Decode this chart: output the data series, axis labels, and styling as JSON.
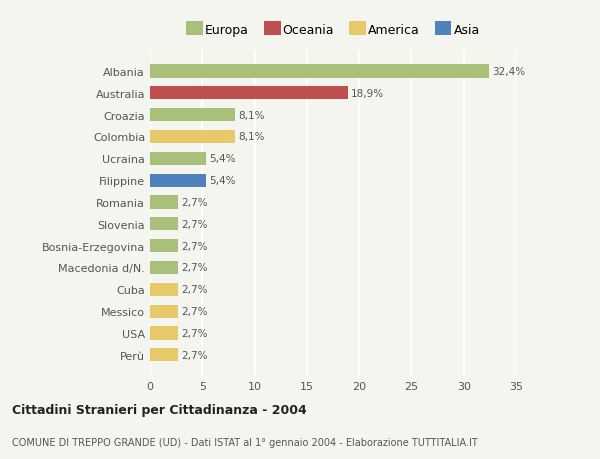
{
  "categories": [
    "Albania",
    "Australia",
    "Croazia",
    "Colombia",
    "Ucraina",
    "Filippine",
    "Romania",
    "Slovenia",
    "Bosnia-Erzegovina",
    "Macedonia d/N.",
    "Cuba",
    "Messico",
    "USA",
    "Perù"
  ],
  "values": [
    32.4,
    18.9,
    8.1,
    8.1,
    5.4,
    5.4,
    2.7,
    2.7,
    2.7,
    2.7,
    2.7,
    2.7,
    2.7,
    2.7
  ],
  "labels": [
    "32,4%",
    "18,9%",
    "8,1%",
    "8,1%",
    "5,4%",
    "5,4%",
    "2,7%",
    "2,7%",
    "2,7%",
    "2,7%",
    "2,7%",
    "2,7%",
    "2,7%",
    "2,7%"
  ],
  "colors": [
    "#a8c07a",
    "#c0504d",
    "#a8c07a",
    "#e8c96a",
    "#a8c07a",
    "#4f81bd",
    "#a8c07a",
    "#a8c07a",
    "#a8c07a",
    "#a8c07a",
    "#e8c96a",
    "#e8c96a",
    "#e8c96a",
    "#e8c96a"
  ],
  "legend_labels": [
    "Europa",
    "Oceania",
    "America",
    "Asia"
  ],
  "legend_colors": [
    "#a8c07a",
    "#c0504d",
    "#e8c96a",
    "#4f81bd"
  ],
  "xlim": [
    0,
    35
  ],
  "xticks": [
    0,
    5,
    10,
    15,
    20,
    25,
    30,
    35
  ],
  "title": "Cittadini Stranieri per Cittadinanza - 2004",
  "subtitle": "COMUNE DI TREPPO GRANDE (UD) - Dati ISTAT al 1° gennaio 2004 - Elaborazione TUTTITALIA.IT",
  "bg_color": "#f5f5f0",
  "bar_height": 0.6,
  "grid_color": "#ffffff",
  "text_color": "#555555",
  "label_fontsize": 7.5,
  "tick_fontsize": 8,
  "legend_fontsize": 9,
  "title_fontsize": 9,
  "subtitle_fontsize": 7
}
